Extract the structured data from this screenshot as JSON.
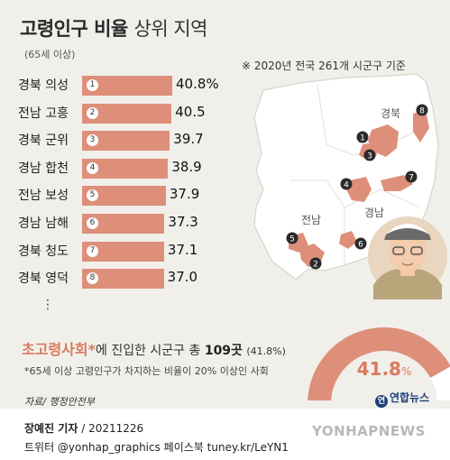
{
  "title": {
    "main": "고령인구 비율",
    "sub": "상위 지역"
  },
  "subtitle": "(65세 이상)",
  "note": "※ 2020년 전국 261개 시군구 기준",
  "chart_data": {
    "type": "bar",
    "title": "고령인구 비율 상위 지역",
    "categories": [
      "경북 의성",
      "전남 고흥",
      "경북 군위",
      "경남 합천",
      "전남 보성",
      "경남 남해",
      "경북 청도",
      "경북 영덕"
    ],
    "ranks": [
      "1",
      "2",
      "3",
      "4",
      "5",
      "6",
      "7",
      "8"
    ],
    "values": [
      40.8,
      40.5,
      39.7,
      38.9,
      37.9,
      37.3,
      37.1,
      37.0
    ],
    "value_labels": [
      "40.8%",
      "40.5",
      "39.7",
      "38.9",
      "37.9",
      "37.3",
      "37.1",
      "37.0"
    ],
    "xlim": [
      0,
      40.8
    ],
    "bar_color": "#dd8f7a"
  },
  "ellipsis": "⋮",
  "map": {
    "region_labels": [
      "경북",
      "전남",
      "경남"
    ],
    "markers": [
      {
        "rank": "1",
        "region": "경북 의성"
      },
      {
        "rank": "2",
        "region": "전남 고흥"
      },
      {
        "rank": "3",
        "region": "경북 군위"
      },
      {
        "rank": "4",
        "region": "경남 합천"
      },
      {
        "rank": "5",
        "region": "전남 보성"
      },
      {
        "rank": "6",
        "region": "경남 남해"
      },
      {
        "rank": "7",
        "region": "경북 청도"
      },
      {
        "rank": "8",
        "region": "경북 영덕"
      }
    ],
    "land_color": "#ffffff",
    "highlight_color": "#dd8f7a",
    "illustration": "elderly-man-icon"
  },
  "summary": {
    "highlight": "초고령사회",
    "asterisk": "*",
    "text": "에 진입한 시군구 총 ",
    "count": "109곳",
    "pct": "(41.8%)"
  },
  "footnote": "*65세 이상 고령인구가 차지하는 비율이 20% 이상인 사회",
  "donut": {
    "value": 41.8,
    "label": "41.8",
    "unit": "%",
    "color": "#dd8f7a"
  },
  "source": "자료/ 행정안전부",
  "logo": {
    "icon": "yonhap-logo-icon",
    "text": "연합뉴스"
  },
  "credit": {
    "name": "장예진 기자",
    "date": " / 20211226"
  },
  "social": "트위터 @yonhap_graphics  페이스북 tuney.kr/LeYN1",
  "watermark": "YONHAPNEWS"
}
